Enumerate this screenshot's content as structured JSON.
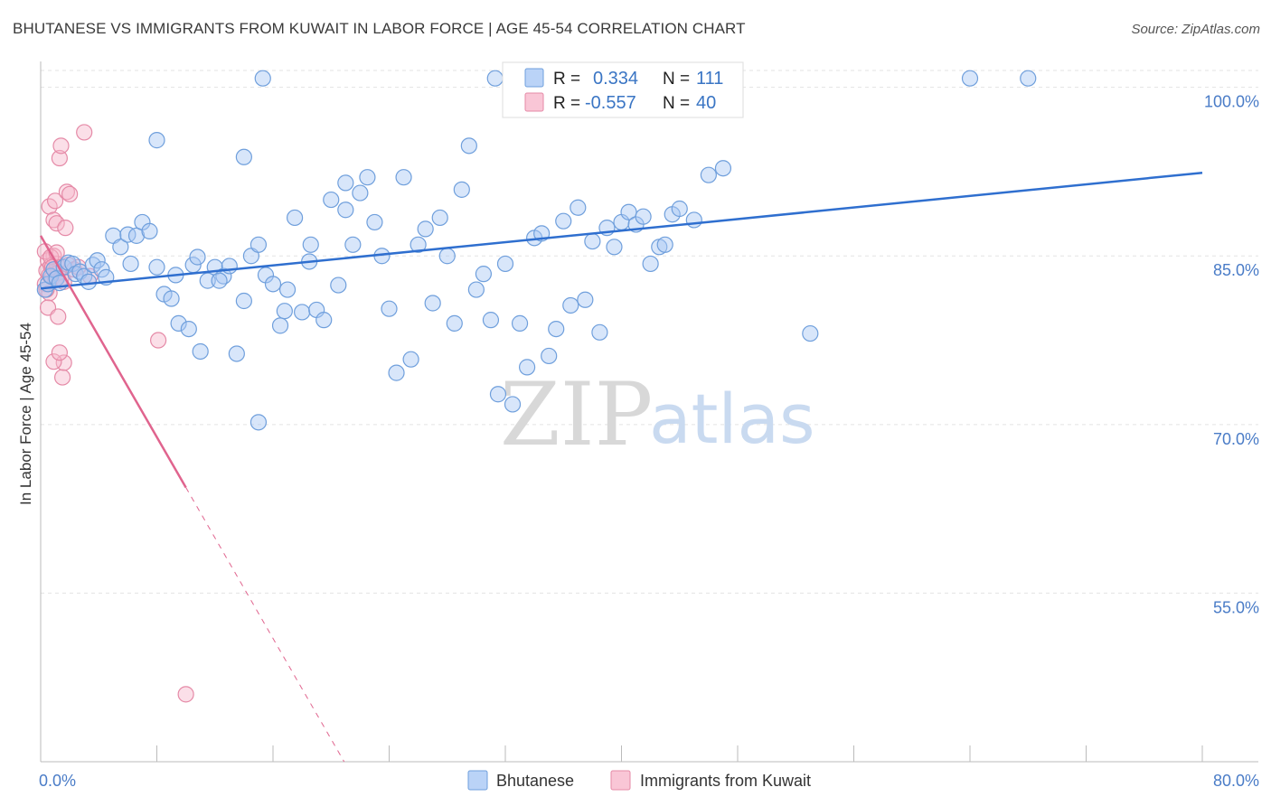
{
  "header": {
    "title": "BHUTANESE VS IMMIGRANTS FROM KUWAIT IN LABOR FORCE | AGE 45-54 CORRELATION CHART",
    "source": "Source: ZipAtlas.com"
  },
  "watermark": {
    "part1": "ZIP",
    "part2": "atlas"
  },
  "legend_box": {
    "rows": [
      {
        "r_label": "R =",
        "r_value": "0.334",
        "n_label": "N =",
        "n_value": "111",
        "color": "#a9c8f5",
        "stroke": "#6f9fdc"
      },
      {
        "r_label": "R =",
        "r_value": "-0.557",
        "n_label": "N =",
        "n_value": "40",
        "color": "#f7b8cc",
        "stroke": "#e58aa7"
      }
    ]
  },
  "bottom_legend": {
    "items": [
      {
        "label": "Bhutanese",
        "color": "#a9c8f5",
        "stroke": "#6f9fdc"
      },
      {
        "label": "Immigrants from Kuwait",
        "color": "#f7b8cc",
        "stroke": "#e58aa7"
      }
    ]
  },
  "chart_data": {
    "type": "scatter",
    "title": "BHUTANESE VS IMMIGRANTS FROM KUWAIT IN LABOR FORCE | AGE 45-54 CORRELATION CHART",
    "xlabel": "",
    "ylabel": "In Labor Force | Age 45-54",
    "xlim": [
      0,
      80
    ],
    "ylim": [
      40,
      101.5
    ],
    "x_tick_labels": [
      "0.0%",
      "80.0%"
    ],
    "y_ticks": [
      {
        "value": 100,
        "label": "100.0%"
      },
      {
        "value": 85,
        "label": "85.0%"
      },
      {
        "value": 70,
        "label": "70.0%"
      },
      {
        "value": 55,
        "label": "55.0%"
      }
    ],
    "grid": "horizontal dashed",
    "colors": {
      "blue": "#6f9fdc",
      "blue_fill": "#a9c8f5",
      "blue_line": "#2f6fcf",
      "pink": "#e58aa7",
      "pink_fill": "#f7b8cc",
      "pink_line": "#e0648e"
    },
    "series": [
      {
        "name": "Bhutanese",
        "r": 0.334,
        "n": 111,
        "trend": {
          "x0": 0.0,
          "y0": 82.1,
          "x1": 80.0,
          "y1": 92.4
        },
        "points": [
          [
            0.3,
            82.0
          ],
          [
            0.5,
            82.5
          ],
          [
            0.7,
            83.2
          ],
          [
            0.9,
            83.8
          ],
          [
            1.1,
            83.0
          ],
          [
            1.3,
            82.6
          ],
          [
            1.6,
            84.0
          ],
          [
            1.9,
            84.4
          ],
          [
            2.2,
            84.3
          ],
          [
            2.4,
            83.4
          ],
          [
            2.7,
            83.6
          ],
          [
            3.0,
            83.2
          ],
          [
            3.3,
            82.7
          ],
          [
            3.6,
            84.2
          ],
          [
            3.9,
            84.6
          ],
          [
            4.2,
            83.8
          ],
          [
            5.0,
            86.8
          ],
          [
            5.5,
            85.8
          ],
          [
            6.0,
            86.9
          ],
          [
            6.6,
            86.8
          ],
          [
            7.0,
            88.0
          ],
          [
            7.5,
            87.2
          ],
          [
            8.0,
            84.0
          ],
          [
            8.5,
            81.6
          ],
          [
            9.0,
            81.2
          ],
          [
            9.5,
            79.0
          ],
          [
            10.2,
            78.5
          ],
          [
            10.5,
            84.2
          ],
          [
            11.0,
            76.5
          ],
          [
            11.5,
            82.8
          ],
          [
            12.0,
            84.0
          ],
          [
            12.6,
            83.2
          ],
          [
            13.0,
            84.1
          ],
          [
            13.5,
            76.3
          ],
          [
            14.0,
            81.0
          ],
          [
            14.5,
            85.0
          ],
          [
            15.0,
            86.0
          ],
          [
            15.5,
            83.3
          ],
          [
            16.0,
            82.5
          ],
          [
            16.5,
            78.8
          ],
          [
            17.0,
            82.0
          ],
          [
            17.5,
            88.4
          ],
          [
            18.0,
            80.0
          ],
          [
            18.5,
            84.5
          ],
          [
            19.0,
            80.2
          ],
          [
            19.5,
            79.3
          ],
          [
            20.0,
            90.0
          ],
          [
            20.5,
            82.4
          ],
          [
            21.0,
            89.1
          ],
          [
            21.5,
            86.0
          ],
          [
            22.0,
            90.6
          ],
          [
            22.5,
            92.0
          ],
          [
            23.0,
            88.0
          ],
          [
            23.5,
            85.0
          ],
          [
            24.0,
            80.3
          ],
          [
            24.5,
            74.6
          ],
          [
            25.0,
            92.0
          ],
          [
            25.5,
            75.8
          ],
          [
            26.0,
            86.0
          ],
          [
            26.5,
            87.4
          ],
          [
            27.0,
            80.8
          ],
          [
            27.5,
            88.4
          ],
          [
            28.0,
            85.0
          ],
          [
            28.5,
            79.0
          ],
          [
            29.0,
            90.9
          ],
          [
            29.5,
            94.8
          ],
          [
            30.0,
            82.0
          ],
          [
            30.5,
            83.4
          ],
          [
            31.0,
            79.3
          ],
          [
            31.5,
            72.7
          ],
          [
            32.0,
            84.3
          ],
          [
            32.5,
            71.8
          ],
          [
            33.0,
            79.0
          ],
          [
            33.5,
            75.1
          ],
          [
            34.0,
            86.6
          ],
          [
            34.5,
            87.0
          ],
          [
            35.0,
            76.1
          ],
          [
            35.5,
            78.5
          ],
          [
            36.0,
            88.1
          ],
          [
            36.5,
            80.6
          ],
          [
            37.0,
            89.3
          ],
          [
            37.5,
            81.1
          ],
          [
            38.0,
            86.3
          ],
          [
            38.5,
            78.2
          ],
          [
            39.0,
            87.5
          ],
          [
            39.5,
            85.8
          ],
          [
            40.0,
            88.0
          ],
          [
            40.5,
            88.9
          ],
          [
            41.0,
            87.8
          ],
          [
            41.5,
            88.5
          ],
          [
            42.0,
            84.3
          ],
          [
            42.6,
            85.8
          ],
          [
            43.0,
            86.0
          ],
          [
            43.5,
            88.7
          ],
          [
            44.0,
            89.2
          ],
          [
            45.0,
            88.2
          ],
          [
            46.0,
            92.2
          ],
          [
            47.0,
            92.8
          ],
          [
            53.0,
            78.1
          ],
          [
            15.0,
            70.2
          ],
          [
            21.0,
            91.5
          ],
          [
            8.0,
            95.3
          ],
          [
            14.0,
            93.8
          ],
          [
            10.8,
            84.9
          ],
          [
            9.3,
            83.3
          ],
          [
            18.6,
            86.0
          ],
          [
            6.2,
            84.3
          ],
          [
            12.3,
            82.8
          ],
          [
            16.8,
            80.1
          ],
          [
            4.5,
            83.1
          ],
          [
            45.5,
            100.8
          ]
        ],
        "top_points": [
          [
            15.3,
            100.8
          ],
          [
            31.3,
            100.8
          ],
          [
            64.0,
            100.8
          ],
          [
            68.0,
            100.8
          ]
        ]
      },
      {
        "name": "Immigrants from Kuwait",
        "r": -0.557,
        "n": 40,
        "trend_solid": {
          "x0": 0.0,
          "y0": 86.8,
          "x1": 10.0,
          "y1": 64.4
        },
        "trend_dashed": {
          "x0": 10.0,
          "y0": 64.4,
          "x1": 20.9,
          "y1": 40.0
        },
        "points": [
          [
            0.3,
            82.5
          ],
          [
            0.4,
            83.7
          ],
          [
            0.5,
            84.6
          ],
          [
            0.6,
            81.7
          ],
          [
            0.7,
            84.1
          ],
          [
            0.8,
            83.1
          ],
          [
            0.9,
            85.0
          ],
          [
            1.0,
            82.9
          ],
          [
            1.1,
            84.3
          ],
          [
            1.2,
            83.5
          ],
          [
            0.3,
            85.4
          ],
          [
            0.5,
            80.4
          ],
          [
            0.6,
            89.4
          ],
          [
            0.7,
            84.9
          ],
          [
            0.9,
            88.2
          ],
          [
            1.0,
            89.9
          ],
          [
            1.1,
            87.9
          ],
          [
            1.2,
            79.6
          ],
          [
            1.3,
            93.7
          ],
          [
            1.4,
            94.8
          ],
          [
            1.5,
            74.2
          ],
          [
            1.6,
            75.5
          ],
          [
            1.7,
            87.5
          ],
          [
            1.8,
            90.7
          ],
          [
            2.0,
            90.5
          ],
          [
            3.0,
            96.0
          ],
          [
            0.9,
            75.6
          ],
          [
            1.3,
            76.4
          ],
          [
            0.4,
            82.0
          ],
          [
            0.6,
            83.3
          ],
          [
            0.8,
            84.0
          ],
          [
            1.1,
            85.3
          ],
          [
            1.4,
            83.0
          ],
          [
            1.9,
            84.2
          ],
          [
            2.3,
            83.8
          ],
          [
            2.6,
            84.0
          ],
          [
            3.4,
            83.2
          ],
          [
            8.1,
            77.5
          ],
          [
            10.0,
            46.0
          ],
          [
            1.6,
            82.7
          ]
        ]
      }
    ]
  }
}
